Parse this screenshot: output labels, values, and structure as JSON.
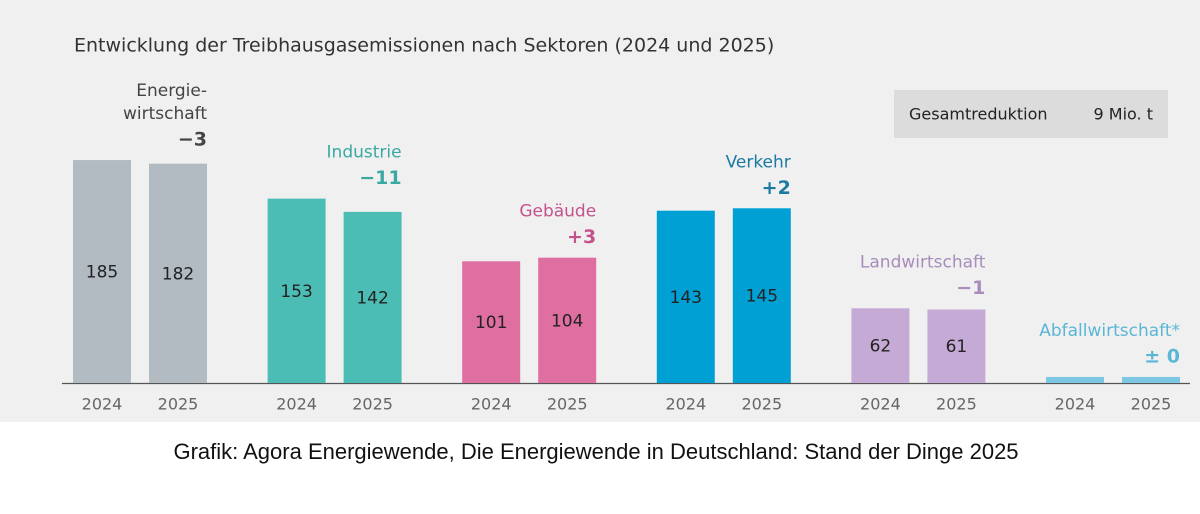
{
  "chart_data": {
    "type": "bar",
    "title": "Entwicklung der Treibhausgasemissionen nach Sektoren (2024 und 2025)",
    "categories": [
      "Energie-\nwirtschaft",
      "Industrie",
      "Gebäude",
      "Verkehr",
      "Landwirtschaft",
      "Abfallwirtschaft*"
    ],
    "change_labels": [
      "−3",
      "−11",
      "+3",
      "+2",
      "−1",
      "± 0"
    ],
    "colors": [
      "#b1bbc1",
      "#4cbdb5",
      "#df6fa0",
      "#00a0d5",
      "#c4aad4",
      "#7cc8e2"
    ],
    "label_colors": [
      "#444444",
      "#3aa9a1",
      "#c4538d",
      "#1b7aa2",
      "#a88cbb",
      "#5bb6d6"
    ],
    "series": [
      {
        "name": "2024",
        "values": [
          185,
          153,
          101,
          143,
          62,
          5
        ]
      },
      {
        "name": "2025",
        "values": [
          182,
          142,
          104,
          145,
          61,
          5
        ]
      }
    ],
    "ylim": [
      0,
      200
    ],
    "total_label": "Gesamtreduktion",
    "total_value": "9 Mio. t",
    "source": "Grafik: Agora Energiewende, Die Energiewende in Deutschland: Stand der Dinge 2025"
  }
}
